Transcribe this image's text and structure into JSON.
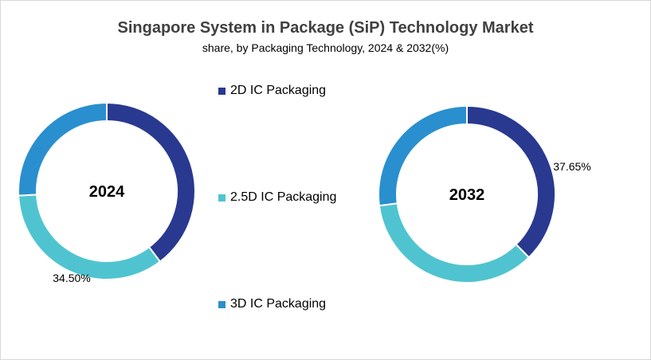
{
  "chart_data": {
    "type": "donut",
    "title": "Singapore System in Package (SiP) Technology Market",
    "subtitle": "share, by Packaging Technology, 2024 & 2032(%)",
    "legend_placement": "center",
    "series_names": [
      "2D IC Packaging",
      "2.5D IC Packaging",
      "3D IC Packaging"
    ],
    "colors": [
      "#293990",
      "#4fc4d0",
      "#2a8fce"
    ],
    "charts": [
      {
        "label": "2024",
        "values": [
          39.7,
          34.5,
          25.8
        ],
        "data_labels": [
          {
            "index": 1,
            "text": "34.50%"
          }
        ]
      },
      {
        "label": "2032",
        "values": [
          37.65,
          35.3,
          27.05
        ],
        "data_labels": [
          {
            "index": 0,
            "text": "37.65%"
          }
        ]
      }
    ]
  }
}
